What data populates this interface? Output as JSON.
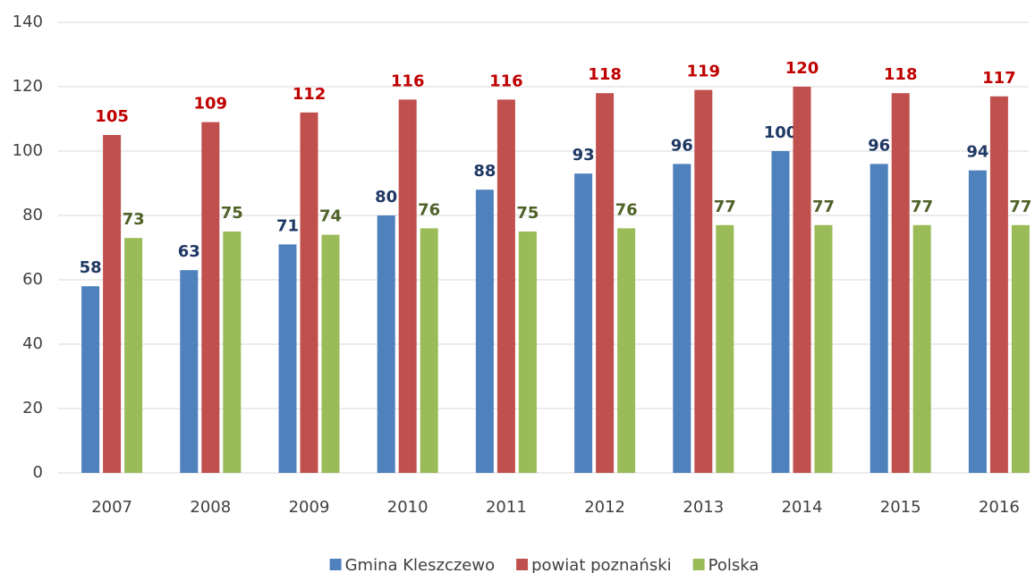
{
  "chart_data": {
    "type": "bar",
    "categories": [
      "2007",
      "2008",
      "2009",
      "2010",
      "2011",
      "2012",
      "2013",
      "2014",
      "2015",
      "2016"
    ],
    "series": [
      {
        "name": "Gmina Kleszczewo",
        "color": "#4f81bd",
        "label_color": "#1f3864",
        "values": [
          58,
          63,
          71,
          80,
          88,
          93,
          96,
          100,
          96,
          94
        ]
      },
      {
        "name": "powiat poznański",
        "color": "#c0504d",
        "label_color": "#c00000",
        "values": [
          105,
          109,
          112,
          116,
          116,
          118,
          119,
          120,
          118,
          117
        ]
      },
      {
        "name": "Polska",
        "color": "#9bbb59",
        "label_color": "#4f6228",
        "values": [
          73,
          75,
          74,
          76,
          75,
          76,
          77,
          77,
          77,
          77
        ]
      }
    ],
    "ylim": [
      0,
      140
    ],
    "yticks": [
      0,
      20,
      40,
      60,
      80,
      100,
      120,
      140
    ],
    "grid": true,
    "legend": "bottom"
  }
}
